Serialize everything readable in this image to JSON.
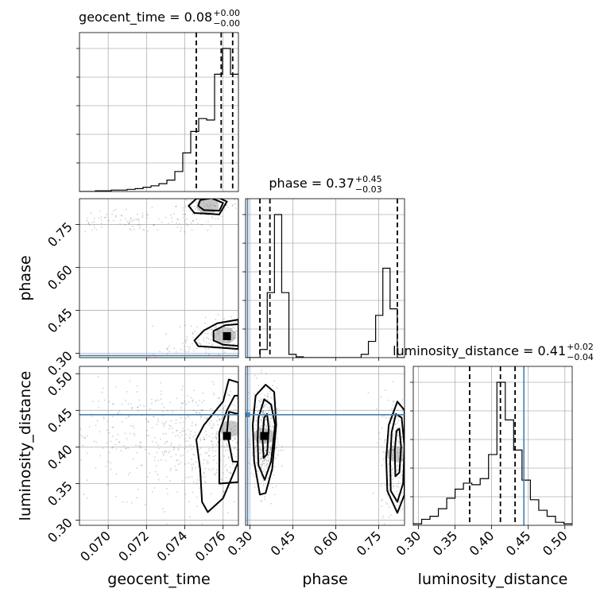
{
  "chart_data": {
    "type": "corner",
    "parameters": [
      "geocent_time",
      "phase",
      "luminosity_distance"
    ],
    "titles": [
      {
        "param": "geocent_time",
        "main": "geocent_time = 0.08",
        "plus": "+0.00",
        "minus": "−0.00"
      },
      {
        "param": "phase",
        "main": "phase = 0.37",
        "plus": "+0.45",
        "minus": "−0.03"
      },
      {
        "param": "luminosity_distance",
        "main": "luminosity_distance = 0.41",
        "plus": "+0.02",
        "minus": "−0.04"
      }
    ],
    "axis_labels": {
      "geocent_time": "geocent_time",
      "phase": "phase",
      "luminosity_distance": "luminosity_distance"
    },
    "ranges": {
      "geocent_time": [
        0.0685,
        0.0768
      ],
      "phase": [
        0.285,
        0.84
      ],
      "luminosity_distance": [
        0.293,
        0.51
      ]
    },
    "ticks": {
      "geocent_time": [
        "0.070",
        "0.072",
        "0.074",
        "0.076"
      ],
      "phase": [
        "0.30",
        "0.45",
        "0.60",
        "0.75"
      ],
      "luminosity_distance": [
        "0.30",
        "0.35",
        "0.40",
        "0.45",
        "0.50"
      ]
    },
    "injection": {
      "phase": 0.292,
      "luminosity_distance": 0.444
    },
    "quantiles": {
      "geocent_time": [
        0.0746,
        0.0759,
        0.0765
      ],
      "phase": [
        0.335,
        0.37,
        0.815
      ],
      "luminosity_distance": [
        0.37,
        0.412,
        0.432
      ]
    },
    "histograms": {
      "geocent_time": {
        "x_start": 0.0685,
        "x_end": 0.0768,
        "heights": [
          0,
          0,
          0.005,
          0.005,
          0.01,
          0.01,
          0.015,
          0.02,
          0.03,
          0.04,
          0.055,
          0.08,
          0.14,
          0.27,
          0.42,
          0.51,
          0.5,
          0.82,
          1.0,
          0.82
        ]
      },
      "phase": {
        "x_start": 0.285,
        "x_end": 0.84,
        "heights": [
          0,
          0,
          0.05,
          0.4,
          0.88,
          0.4,
          0.02,
          0.005,
          0,
          0,
          0,
          0,
          0,
          0,
          0,
          0,
          0.02,
          0.1,
          0.26,
          0.55,
          0.3,
          0
        ]
      },
      "luminosity_distance": {
        "x_start": 0.293,
        "x_end": 0.51,
        "heights": [
          0.01,
          0.04,
          0.06,
          0.11,
          0.18,
          0.24,
          0.28,
          0.27,
          0.31,
          0.47,
          0.95,
          0.7,
          0.5,
          0.3,
          0.17,
          0.1,
          0.06,
          0.02,
          0.01
        ]
      }
    },
    "pairs": [
      {
        "x": "geocent_time",
        "y": "phase",
        "peaks": [
          [
            0.0761,
            0.362
          ],
          [
            0.0752,
            0.815
          ]
        ],
        "marker": [
          0.0762,
          0.36
        ],
        "scatter_clusters": [
          {
            "center": [
              0.0765,
              0.36
            ],
            "spread": [
              0.0012,
              0.03
            ],
            "n": 260
          },
          {
            "center": [
              0.0752,
              0.815
            ],
            "spread": [
              0.0008,
              0.025
            ],
            "n": 110
          },
          {
            "center": [
              0.0715,
              0.76
            ],
            "spread": [
              0.0025,
              0.02
            ],
            "n": 120
          },
          {
            "center": [
              0.0738,
              0.31
            ],
            "spread": [
              0.001,
              0.01
            ],
            "n": 25
          }
        ],
        "contours": [
          [
            [
              0.076,
              0.33
            ],
            [
              0.0768,
              0.326
            ],
            [
              0.0768,
              0.402
            ],
            [
              0.0761,
              0.398
            ],
            [
              0.0755,
              0.378
            ],
            [
              0.0755,
              0.345
            ]
          ],
          [
            [
              0.0747,
              0.325
            ],
            [
              0.0768,
              0.315
            ],
            [
              0.0768,
              0.418
            ],
            [
              0.0757,
              0.405
            ],
            [
              0.075,
              0.38
            ],
            [
              0.0745,
              0.345
            ]
          ],
          [
            [
              0.075,
              0.8
            ],
            [
              0.0758,
              0.798
            ],
            [
              0.076,
              0.825
            ],
            [
              0.0754,
              0.842
            ],
            [
              0.0748,
              0.835
            ],
            [
              0.0747,
              0.815
            ]
          ],
          [
            [
              0.0745,
              0.79
            ],
            [
              0.0758,
              0.785
            ],
            [
              0.0762,
              0.83
            ],
            [
              0.0757,
              0.845
            ],
            [
              0.0746,
              0.84
            ],
            [
              0.0742,
              0.815
            ]
          ]
        ]
      },
      {
        "x": "geocent_time",
        "y": "luminosity_distance",
        "peaks": [
          [
            0.0764,
            0.425
          ]
        ],
        "marker": [
          0.0762,
          0.415
        ],
        "scatter_clusters": [
          {
            "center": [
              0.0765,
              0.41
            ],
            "spread": [
              0.0012,
              0.035
            ],
            "n": 330
          },
          {
            "center": [
              0.074,
              0.4
            ],
            "spread": [
              0.0018,
              0.04
            ],
            "n": 230
          },
          {
            "center": [
              0.071,
              0.42
            ],
            "spread": [
              0.0025,
              0.04
            ],
            "n": 180
          }
        ],
        "contours": [
          [
            [
              0.0765,
              0.38
            ],
            [
              0.0768,
              0.38
            ],
            [
              0.0768,
              0.445
            ],
            [
              0.0763,
              0.448
            ],
            [
              0.0762,
              0.42
            ]
          ],
          [
            [
              0.0758,
              0.35
            ],
            [
              0.0768,
              0.352
            ],
            [
              0.0768,
              0.47
            ],
            [
              0.0766,
              0.47
            ],
            [
              0.0762,
              0.45
            ],
            [
              0.0758,
              0.42
            ]
          ],
          [
            [
              0.0749,
              0.325
            ],
            [
              0.0752,
              0.311
            ],
            [
              0.076,
              0.33
            ],
            [
              0.0768,
              0.38
            ],
            [
              0.0768,
              0.488
            ],
            [
              0.0763,
              0.492
            ],
            [
              0.076,
              0.462
            ],
            [
              0.075,
              0.43
            ],
            [
              0.0746,
              0.41
            ],
            [
              0.0748,
              0.37
            ]
          ]
        ]
      },
      {
        "x": "phase",
        "y": "luminosity_distance",
        "peaks": [
          [
            0.35,
            0.415
          ],
          [
            0.815,
            0.39
          ]
        ],
        "marker": [
          0.35,
          0.415
        ],
        "scatter_clusters": [
          {
            "center": [
              0.35,
              0.41
            ],
            "spread": [
              0.022,
              0.035
            ],
            "n": 450
          },
          {
            "center": [
              0.815,
              0.39
            ],
            "spread": [
              0.03,
              0.04
            ],
            "n": 320
          }
        ],
        "contours": [
          [
            [
              0.348,
              0.385
            ],
            [
              0.36,
              0.39
            ],
            [
              0.366,
              0.425
            ],
            [
              0.36,
              0.445
            ],
            [
              0.35,
              0.44
            ],
            [
              0.344,
              0.412
            ]
          ],
          [
            [
              0.33,
              0.375
            ],
            [
              0.352,
              0.355
            ],
            [
              0.374,
              0.38
            ],
            [
              0.388,
              0.43
            ],
            [
              0.374,
              0.458
            ],
            [
              0.35,
              0.465
            ],
            [
              0.33,
              0.44
            ],
            [
              0.327,
              0.41
            ]
          ],
          [
            [
              0.315,
              0.38
            ],
            [
              0.335,
              0.335
            ],
            [
              0.355,
              0.337
            ],
            [
              0.378,
              0.37
            ],
            [
              0.392,
              0.43
            ],
            [
              0.385,
              0.475
            ],
            [
              0.355,
              0.485
            ],
            [
              0.32,
              0.47
            ],
            [
              0.31,
              0.43
            ]
          ],
          [
            [
              0.808,
              0.36
            ],
            [
              0.822,
              0.365
            ],
            [
              0.828,
              0.4
            ],
            [
              0.822,
              0.425
            ],
            [
              0.812,
              0.422
            ],
            [
              0.806,
              0.395
            ]
          ],
          [
            [
              0.792,
              0.34
            ],
            [
              0.815,
              0.325
            ],
            [
              0.835,
              0.35
            ],
            [
              0.84,
              0.4
            ],
            [
              0.83,
              0.44
            ],
            [
              0.81,
              0.445
            ],
            [
              0.795,
              0.42
            ],
            [
              0.79,
              0.38
            ]
          ],
          [
            [
              0.78,
              0.34
            ],
            [
              0.815,
              0.31
            ],
            [
              0.84,
              0.335
            ],
            [
              0.84,
              0.45
            ],
            [
              0.815,
              0.462
            ],
            [
              0.785,
              0.43
            ],
            [
              0.776,
              0.385
            ]
          ]
        ]
      }
    ]
  },
  "colors": {
    "histogram": "#000000",
    "injection": "#4682b4",
    "grid": "#b0b0b0",
    "scatter": "#000000",
    "contour_fill": "#9a9a9a"
  }
}
